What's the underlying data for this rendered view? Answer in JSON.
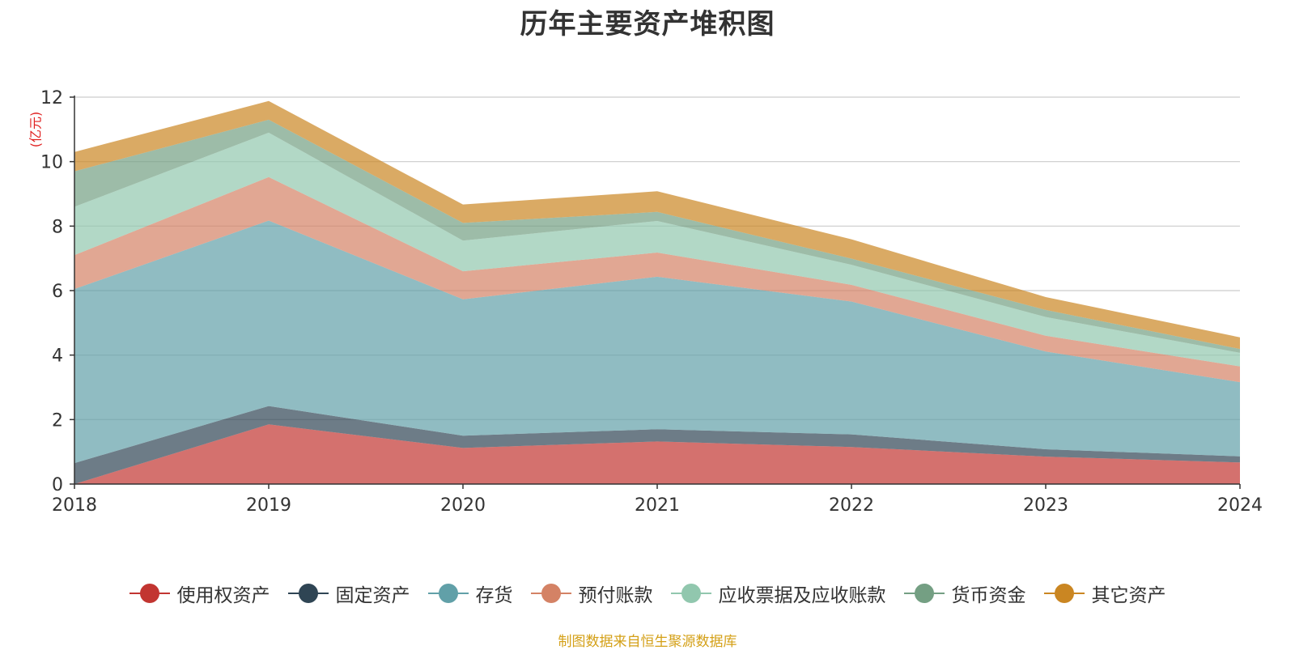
{
  "chart_data": {
    "type": "area",
    "stacked": true,
    "title": "历年主要资产堆积图",
    "unit_label": "(亿元)",
    "x": [
      "2018",
      "2019",
      "2020",
      "2021",
      "2022",
      "2023",
      "2024"
    ],
    "ylim": [
      0,
      12
    ],
    "yticks": [
      "0",
      "2",
      "4",
      "6",
      "8",
      "10",
      "12"
    ],
    "grid": true,
    "legend_position": "bottom",
    "series": [
      {
        "name": "使用权资产",
        "color": "#c23531",
        "values": [
          0.0,
          1.85,
          1.12,
          1.32,
          1.15,
          0.85,
          0.67
        ]
      },
      {
        "name": "固定资产",
        "color": "#2f4554",
        "values": [
          0.65,
          0.57,
          0.38,
          0.38,
          0.39,
          0.23,
          0.19
        ]
      },
      {
        "name": "存货",
        "color": "#61a0a8",
        "values": [
          5.4,
          5.75,
          4.23,
          4.73,
          4.12,
          3.03,
          2.3
        ]
      },
      {
        "name": "预付账款",
        "color": "#d48265",
        "values": [
          1.05,
          1.35,
          0.87,
          0.75,
          0.52,
          0.49,
          0.49
        ]
      },
      {
        "name": "应收票据及应收账款",
        "color": "#91c7ae",
        "values": [
          1.5,
          1.38,
          0.95,
          0.98,
          0.62,
          0.58,
          0.42
        ]
      },
      {
        "name": "货币资金",
        "color": "#749f83",
        "values": [
          1.1,
          0.4,
          0.55,
          0.28,
          0.19,
          0.22,
          0.12
        ]
      },
      {
        "name": "其它资产",
        "color": "#ca8622",
        "values": [
          0.6,
          0.58,
          0.57,
          0.64,
          0.6,
          0.4,
          0.36
        ]
      }
    ]
  },
  "source_note": "制图数据来自恒生聚源数据库"
}
